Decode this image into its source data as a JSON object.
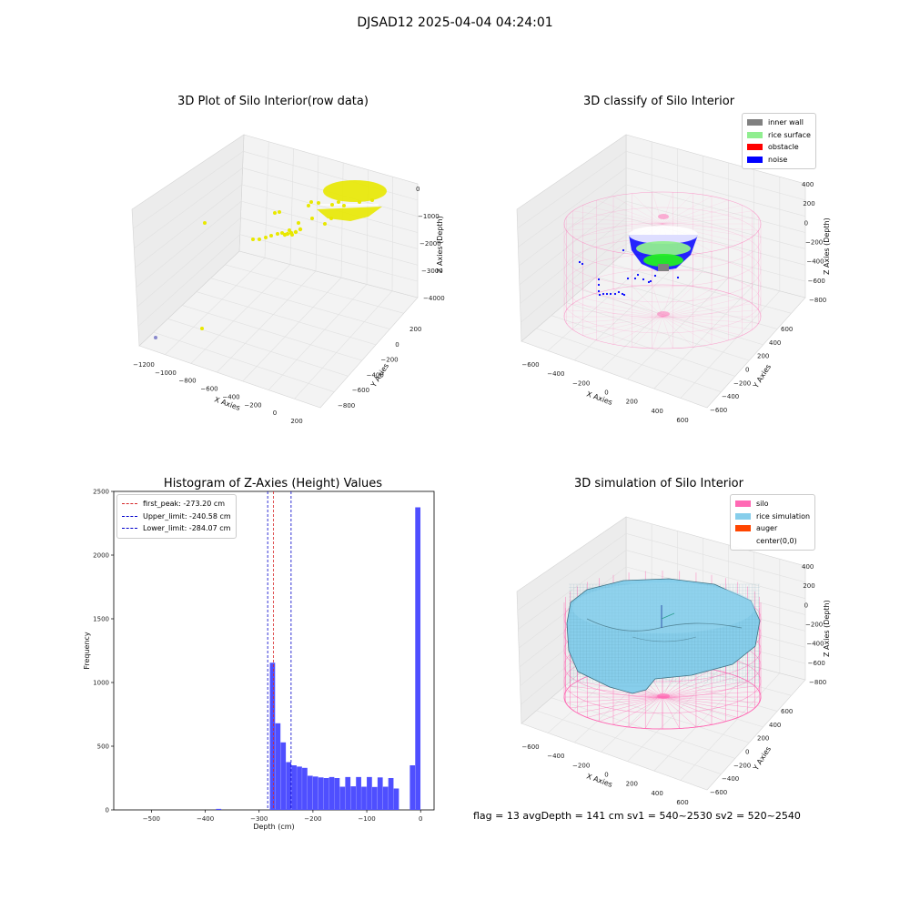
{
  "suptitle": "DJSAD12 2025-04-04 04:24:01",
  "footer": "flag = 13   avgDepth = 141 cm  sv1 = 540~2530  sv2 = 520~2540",
  "colors": {
    "raw_points": "#e8e800",
    "inner_wall": "#808080",
    "rice_surface": "#90ee90",
    "obstacle": "#ff0000",
    "noise": "#0000ff",
    "silo": "#ff69b4",
    "rice_simulation": "#87ceeb",
    "auger": "#ff4500",
    "hist_bar": "#4f4fff",
    "first_peak_line": "#d62728",
    "limit_line": "#0000cc"
  },
  "panels": {
    "raw": {
      "title": "3D Plot of Silo Interior(row data)",
      "x_label": "X Axies",
      "y_label": "Y Axies",
      "z_label": "Z Axies (Depth)",
      "x_ticks": [
        "−1200",
        "−1000",
        "−800",
        "−600",
        "−400",
        "−200",
        "0",
        "200"
      ],
      "y_ticks": [
        "200",
        "0",
        "−200",
        "−400",
        "−600",
        "−800"
      ],
      "z_ticks": [
        "0",
        "−1000",
        "−2000",
        "−3000",
        "−4000"
      ]
    },
    "classify": {
      "title": "3D classify of Silo Interior",
      "x_label": "X Axies",
      "y_label": "Y Axies",
      "z_label": "Z Axies (Depth)",
      "x_ticks": [
        "−600",
        "−400",
        "−200",
        "0",
        "200",
        "400",
        "600"
      ],
      "y_ticks": [
        "600",
        "400",
        "200",
        "0",
        "−200",
        "−400",
        "−600"
      ],
      "z_ticks": [
        "400",
        "200",
        "0",
        "−200",
        "−400",
        "−600",
        "−800"
      ],
      "legend": [
        "inner wall",
        "rice surface",
        "obstacle",
        "noise"
      ]
    },
    "hist": {
      "title": "Histogram of Z-Axies (Height) Values",
      "x_label": "Depth (cm)",
      "y_label": "Frequency",
      "legend": [
        "first_peak: -273.20 cm",
        "Upper_limit: -240.58 cm",
        "Lower_limit: -284.07 cm"
      ]
    },
    "sim": {
      "title": "3D simulation of Silo Interior",
      "x_label": "X Axies",
      "y_label": "Y Axies",
      "z_label": "Z Axies (Depth)",
      "x_ticks": [
        "−600",
        "−400",
        "−200",
        "0",
        "200",
        "400",
        "600"
      ],
      "y_ticks": [
        "600",
        "400",
        "200",
        "0",
        "−200",
        "−400",
        "−600"
      ],
      "z_ticks": [
        "400",
        "200",
        "0",
        "−200",
        "−400",
        "−600",
        "−800"
      ],
      "legend": [
        "silo",
        "rice simulation",
        "auger",
        "center(0,0)"
      ]
    }
  },
  "chart_data": [
    {
      "type": "scatter",
      "title": "3D Plot of Silo Interior(row data)",
      "xlabel": "X Axies",
      "ylabel": "Y Axies",
      "zlabel": "Z Axies (Depth)",
      "xlim": [
        -1200,
        200
      ],
      "ylim": [
        -800,
        200
      ],
      "zlim": [
        -4500,
        0
      ],
      "series": [
        {
          "points": [
            [
              -150,
              -100,
              -300
            ],
            [
              -100,
              -150,
              -500
            ],
            [
              -50,
              -100,
              -700
            ],
            [
              -200,
              -200,
              -900
            ],
            [
              -300,
              -250,
              -1300
            ],
            [
              -400,
              -300,
              -1600
            ],
            [
              -500,
              -400,
              -1900
            ],
            [
              -1000,
              -700,
              -1200
            ],
            [
              -1200,
              200,
              -4500
            ]
          ]
        }
      ]
    },
    {
      "type": "scatter",
      "title": "3D classify of Silo Interior",
      "xlabel": "X Axies",
      "ylabel": "Y Axies",
      "zlabel": "Z Axies (Depth)",
      "xlim": [
        -600,
        600
      ],
      "ylim": [
        -600,
        600
      ],
      "zlim": [
        -900,
        450
      ],
      "series": [
        {
          "name": "inner wall",
          "cylinder_radius": 560,
          "z_range": [
            -850,
            100
          ]
        },
        {
          "name": "rice surface",
          "z_approx": -300
        },
        {
          "name": "obstacle",
          "points": []
        },
        {
          "name": "noise",
          "points": [
            [
              -350,
              -250,
              -450
            ],
            [
              -300,
              -200,
              -420
            ],
            [
              -250,
              -300,
              -380
            ],
            [
              -100,
              -350,
              -480
            ],
            [
              -200,
              -100,
              -300
            ]
          ]
        }
      ]
    },
    {
      "type": "bar",
      "title": "Histogram of Z-Axies (Height) Values",
      "xlabel": "Depth (cm)",
      "ylabel": "Frequency",
      "xlim": [
        -570,
        25
      ],
      "ylim": [
        0,
        2500
      ],
      "x_ticks": [
        -500,
        -400,
        -300,
        -200,
        -100,
        0
      ],
      "y_ticks": [
        0,
        500,
        1000,
        1500,
        2000,
        2500
      ],
      "bin_width": 10,
      "bins": [
        {
          "x": -380,
          "y": 8
        },
        {
          "x": -280,
          "y": 1155
        },
        {
          "x": -270,
          "y": 680
        },
        {
          "x": -260,
          "y": 530
        },
        {
          "x": -250,
          "y": 375
        },
        {
          "x": -240,
          "y": 350
        },
        {
          "x": -230,
          "y": 340
        },
        {
          "x": -220,
          "y": 330
        },
        {
          "x": -210,
          "y": 268
        },
        {
          "x": -200,
          "y": 262
        },
        {
          "x": -190,
          "y": 255
        },
        {
          "x": -180,
          "y": 250
        },
        {
          "x": -170,
          "y": 258
        },
        {
          "x": -160,
          "y": 250
        },
        {
          "x": -150,
          "y": 182
        },
        {
          "x": -140,
          "y": 258
        },
        {
          "x": -130,
          "y": 185
        },
        {
          "x": -120,
          "y": 258
        },
        {
          "x": -110,
          "y": 182
        },
        {
          "x": -100,
          "y": 258
        },
        {
          "x": -90,
          "y": 180
        },
        {
          "x": -80,
          "y": 255
        },
        {
          "x": -70,
          "y": 182
        },
        {
          "x": -60,
          "y": 250
        },
        {
          "x": -50,
          "y": 168
        },
        {
          "x": -20,
          "y": 350
        },
        {
          "x": -10,
          "y": 2375
        }
      ],
      "vlines": [
        {
          "name": "first_peak",
          "x": -273.2
        },
        {
          "name": "Upper_limit",
          "x": -240.58
        },
        {
          "name": "Lower_limit",
          "x": -284.07
        }
      ]
    },
    {
      "type": "area",
      "title": "3D simulation of Silo Interior",
      "xlabel": "X Axies",
      "ylabel": "Y Axies",
      "zlabel": "Z Axies (Depth)",
      "xlim": [
        -600,
        600
      ],
      "ylim": [
        -600,
        600
      ],
      "zlim": [
        -900,
        450
      ],
      "series": [
        {
          "name": "silo",
          "cylinder_radius": 560,
          "z_range": [
            -850,
            100
          ]
        },
        {
          "name": "rice simulation",
          "surface_z_approx": -140
        },
        {
          "name": "auger"
        },
        {
          "name": "center(0,0)"
        }
      ]
    }
  ]
}
